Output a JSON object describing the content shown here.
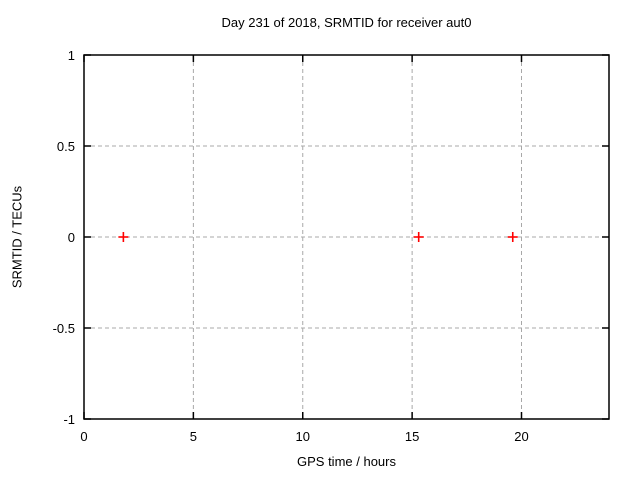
{
  "chart_data": {
    "type": "scatter",
    "title": "Day 231 of 2018, SRMTID for receiver aut0",
    "xlabel": "GPS time / hours",
    "ylabel": "SRMTID / TECUs",
    "xlim": [
      0,
      24
    ],
    "ylim": [
      -1,
      1
    ],
    "xticks": [
      0,
      5,
      10,
      15,
      20
    ],
    "yticks": [
      -1,
      -0.5,
      0,
      0.5,
      1
    ],
    "grid": "dashed",
    "legend": "none",
    "series": [
      {
        "name": "SRMTID",
        "marker": "plus",
        "color": "#ff0000",
        "points": [
          [
            1.8,
            0
          ],
          [
            15.3,
            0
          ],
          [
            19.6,
            0
          ]
        ]
      }
    ]
  },
  "colors": {
    "background": "#ffffff",
    "axis": "#000000",
    "grid": "#a8a8a8",
    "text": "#000000",
    "marker": "#ff0000"
  }
}
